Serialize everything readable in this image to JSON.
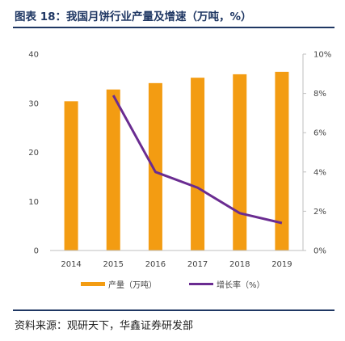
{
  "header": {
    "title": "图表 18：我国月饼行业产量及增速（万吨，%）"
  },
  "footer": {
    "source": "资料来源：观研天下，华鑫证券研发部"
  },
  "chart_data": {
    "type": "bar",
    "title": "图表 18：我国月饼行业产量及增速（万吨，%）",
    "categories": [
      "2014",
      "2015",
      "2016",
      "2017",
      "2018",
      "2019"
    ],
    "series": [
      {
        "name": "产量（万吨）",
        "type": "bar",
        "axis": "left",
        "values": [
          30.4,
          32.8,
          34.1,
          35.2,
          35.9,
          36.4
        ],
        "color": "#f39c12"
      },
      {
        "name": "增长率（%）",
        "type": "line",
        "axis": "right",
        "values": [
          null,
          7.9,
          4.0,
          3.2,
          1.9,
          1.4
        ],
        "color": "#6a2c91"
      }
    ],
    "left_axis": {
      "ylim": [
        0,
        40
      ],
      "ticks": [
        "0",
        "10",
        "20",
        "30",
        "40"
      ]
    },
    "right_axis": {
      "ylim": [
        0,
        10
      ],
      "ticks": [
        "0%",
        "2%",
        "4%",
        "6%",
        "8%",
        "10%"
      ]
    },
    "grid": false,
    "legend": "bottom-center"
  }
}
